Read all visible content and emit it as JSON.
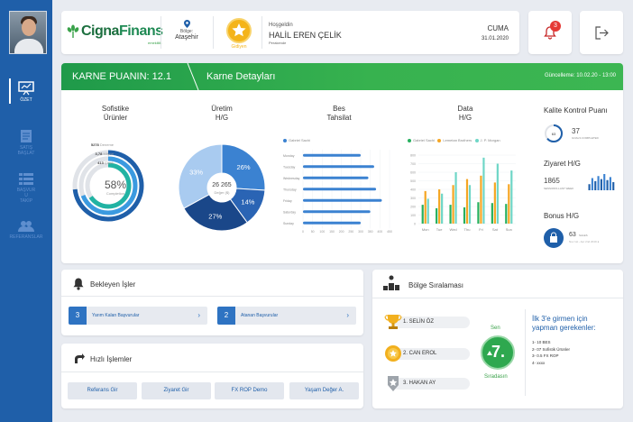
{
  "user": {
    "greeting": "Hoşgeldin",
    "name": "HALİL EREN ÇELİK",
    "role": "Perakende",
    "region_label": "Bölge:",
    "region": "Ataşehir",
    "level": "Gidiyen"
  },
  "header": {
    "day": "CUMA",
    "date": "31.01.2020",
    "logo_text": "Cigna",
    "logo_text2": "Finans",
    "logo_sub": "emeklilik"
  },
  "notifications": {
    "count": "3"
  },
  "nav": [
    {
      "label": "ÖZET"
    },
    {
      "label": "SATIŞ\nBAŞLAT"
    },
    {
      "label": "BAŞVUR\nU\nTAKİP"
    },
    {
      "label": "REFERANSLAR"
    }
  ],
  "scorecard": {
    "title": "KARNE PUANIN: 12.1",
    "subtitle": "Karne Detayları",
    "updated": "Güncelleme: 10.02.20 - 13:00"
  },
  "kpis": {
    "sofistike": {
      "title1": "Sofistike",
      "title2": "Ürünler",
      "percent": "58%",
      "percent_label": "Completion",
      "rings": [
        {
          "value": "5278",
          "label": "Deneme"
        },
        {
          "value": "3,78",
          "label": "Milyon"
        },
        {
          "value": "413",
          "label": "Çiçek"
        }
      ]
    },
    "uretim": {
      "title1": "Üretim",
      "title2": "H/G",
      "center_value": "26 265",
      "center_label": "Değer ($)",
      "slices": [
        {
          "label": "26%",
          "value": 26
        },
        {
          "label": "14%",
          "value": 14
        },
        {
          "label": "27%",
          "value": 27
        },
        {
          "label": "33%",
          "value": 33
        }
      ]
    },
    "bes": {
      "title1": "Bes",
      "title2": "Tahsilat",
      "legend": "Gabriel Sachi"
    },
    "data": {
      "title1": "Data",
      "title2": "H/G",
      "legend": [
        "Gabriel Sachi",
        "Lemetan Brothers",
        "J. P. Morgan"
      ]
    },
    "kalite": {
      "title": "Kalite Kontrol Puanı",
      "value": "37",
      "label": "GOALS COMPLETED",
      "ring_value": "63"
    },
    "ziyaret": {
      "title": "Ziyaret H/G",
      "value": "1865",
      "label": "SESSIONS LAST WEEK"
    },
    "bonus": {
      "title": "Bonus H/G",
      "value": "63",
      "label": "SALES",
      "sub": "Nov 1st - Apr 2nd 2019 ●"
    }
  },
  "chart_data": [
    {
      "type": "pie",
      "title": "Üretim H/G",
      "values": [
        26,
        14,
        27,
        33
      ],
      "labels": [
        "26%",
        "14%",
        "27%",
        "33%"
      ],
      "colors": [
        "#3b82d1",
        "#2a64b4",
        "#1a4789",
        "#a9cbf0"
      ]
    },
    {
      "type": "bar",
      "title": "Bes Tahsilat",
      "orientation": "horizontal",
      "categories": [
        "Monday",
        "Tuesday",
        "Wednesday",
        "Thursday",
        "Friday",
        "Saturday",
        "Sunday"
      ],
      "series": [
        {
          "name": "Gabriel Sachi",
          "values": [
            300,
            370,
            340,
            380,
            410,
            350,
            300
          ]
        }
      ],
      "xticks": [
        "0",
        "50",
        "100",
        "150",
        "200",
        "250",
        "300",
        "350",
        "400",
        "450"
      ],
      "xlim": [
        0,
        450
      ]
    },
    {
      "type": "bar",
      "title": "Data H/G",
      "categories": [
        "Mon",
        "Tue",
        "Wed",
        "Thu",
        "Fri",
        "Sat",
        "Sun"
      ],
      "series": [
        {
          "name": "Gabriel Sachi",
          "values": [
            220,
            180,
            220,
            190,
            250,
            240,
            230
          ]
        },
        {
          "name": "Lemetan Brothers",
          "values": [
            380,
            400,
            450,
            520,
            560,
            480,
            460
          ]
        },
        {
          "name": "J. P. Morgan",
          "values": [
            290,
            350,
            600,
            450,
            770,
            700,
            620
          ]
        }
      ],
      "yticks": [
        "0",
        "100",
        "200",
        "300",
        "400",
        "500",
        "600",
        "700",
        "800"
      ],
      "ylim": [
        0,
        800
      ]
    },
    {
      "type": "bar",
      "title": "Ziyaret H/G",
      "values": [
        6,
        12,
        9,
        14,
        11,
        16,
        10,
        13,
        8
      ],
      "ylim": [
        0,
        16
      ]
    }
  ],
  "pending": {
    "title": "Bekleyen İşler",
    "tasks": [
      {
        "num": "3",
        "label": "Yarım Kalan Başvurular"
      },
      {
        "num": "2",
        "label": "Atanan Başvurular"
      }
    ]
  },
  "quick": {
    "title": "Hızlı İşlemler",
    "buttons": [
      "Referans Gir",
      "Ziyaret Gir",
      "FX ROP Demo",
      "Yaşam Değer A."
    ]
  },
  "ranking": {
    "title": "Bölge Sıralaması",
    "entries": [
      {
        "label": "1. SELİN ÖZ"
      },
      {
        "label": "2. CAN EROL"
      },
      {
        "label": "3. HAKAN AY"
      }
    ],
    "you_label": "Sen",
    "you_rank": "7.",
    "rank_label": "Sıradasın",
    "top3_title": "İlk 3'e girmen için yapman gerekenler:",
    "top3_items": [
      "1- 10 BES",
      "2- 07 Sofistik Ürünler",
      "3- 0.5 FX ROP",
      "4- xxxx"
    ]
  }
}
